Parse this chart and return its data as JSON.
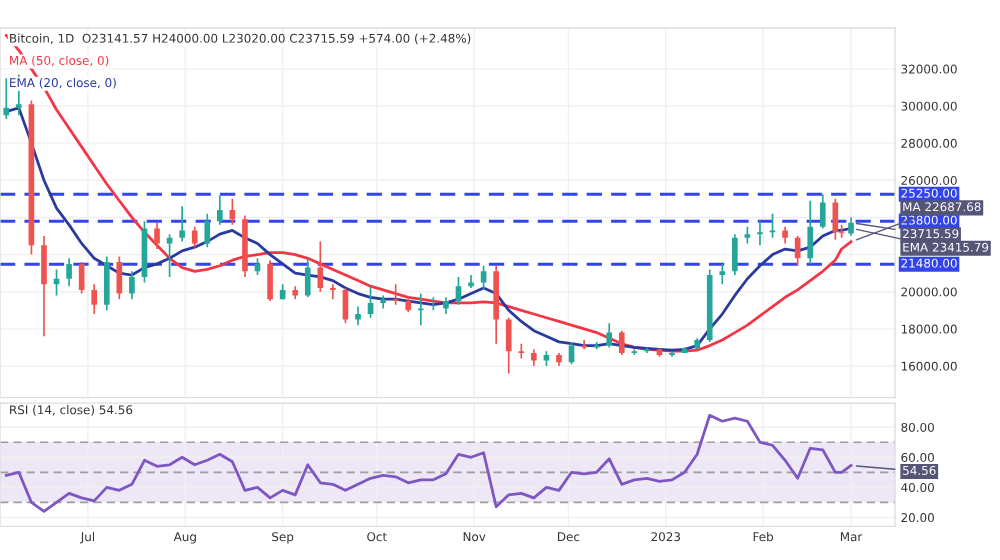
{
  "chart_data": [
    {
      "type": "candlestick",
      "title": "Bitcoin, 1D  O23141.57 H24000.00 L23020.00 C23715.59 +574.00 (+2.48%)",
      "x": [
        "2022-06-05",
        "2022-06-09",
        "2022-06-13",
        "2022-06-17",
        "2022-06-21",
        "2022-06-25",
        "2022-06-29",
        "2022-07-03",
        "2022-07-07",
        "2022-07-11",
        "2022-07-15",
        "2022-07-19",
        "2022-07-23",
        "2022-07-27",
        "2022-07-31",
        "2022-08-04",
        "2022-08-08",
        "2022-08-12",
        "2022-08-16",
        "2022-08-20",
        "2022-08-24",
        "2022-08-28",
        "2022-09-01",
        "2022-09-05",
        "2022-09-09",
        "2022-09-13",
        "2022-09-17",
        "2022-09-21",
        "2022-09-25",
        "2022-09-29",
        "2022-10-03",
        "2022-10-07",
        "2022-10-11",
        "2022-10-15",
        "2022-10-19",
        "2022-10-23",
        "2022-10-27",
        "2022-10-31",
        "2022-11-04",
        "2022-11-08",
        "2022-11-12",
        "2022-11-16",
        "2022-11-20",
        "2022-11-24",
        "2022-11-28",
        "2022-12-02",
        "2022-12-06",
        "2022-12-10",
        "2022-12-14",
        "2022-12-18",
        "2022-12-22",
        "2022-12-26",
        "2022-12-30",
        "2023-01-03",
        "2023-01-07",
        "2023-01-11",
        "2023-01-15",
        "2023-01-19",
        "2023-01-23",
        "2023-01-27",
        "2023-01-31",
        "2023-02-04",
        "2023-02-08",
        "2023-02-12",
        "2023-02-16",
        "2023-02-20",
        "2023-02-24",
        "2023-02-26",
        "2023-03-01"
      ],
      "ohlc": [
        [
          29500,
          31500,
          29300,
          29900
        ],
        [
          29900,
          31700,
          29500,
          30100
        ],
        [
          30100,
          30300,
          22000,
          22500
        ],
        [
          22500,
          23000,
          17600,
          20400
        ],
        [
          20400,
          21200,
          19800,
          20700
        ],
        [
          20700,
          21800,
          20300,
          21500
        ],
        [
          21500,
          21600,
          19900,
          20100
        ],
        [
          20100,
          20400,
          18800,
          19300
        ],
        [
          19300,
          21900,
          19000,
          21600
        ],
        [
          21600,
          21900,
          19600,
          19900
        ],
        [
          19900,
          21100,
          19600,
          20800
        ],
        [
          20800,
          23800,
          20500,
          23400
        ],
        [
          23400,
          23700,
          22300,
          22600
        ],
        [
          22600,
          23100,
          20800,
          22900
        ],
        [
          22900,
          24600,
          22700,
          23300
        ],
        [
          23300,
          23500,
          22400,
          22600
        ],
        [
          22600,
          24200,
          22400,
          23800
        ],
        [
          23800,
          25200,
          23600,
          24400
        ],
        [
          24400,
          25000,
          23600,
          23900
        ],
        [
          23900,
          24100,
          20800,
          21100
        ],
        [
          21100,
          21800,
          20900,
          21500
        ],
        [
          21500,
          21700,
          19500,
          19600
        ],
        [
          19600,
          20400,
          19600,
          20100
        ],
        [
          20100,
          20300,
          19600,
          19800
        ],
        [
          19800,
          21800,
          19700,
          21300
        ],
        [
          21300,
          22700,
          20000,
          20200
        ],
        [
          20200,
          20400,
          19600,
          20100
        ],
        [
          20100,
          20200,
          18300,
          18500
        ],
        [
          18500,
          19200,
          18200,
          18800
        ],
        [
          18800,
          20300,
          18600,
          19400
        ],
        [
          19400,
          19800,
          19100,
          19600
        ],
        [
          19600,
          20400,
          19300,
          19500
        ],
        [
          19500,
          19600,
          18900,
          19000
        ],
        [
          19000,
          19900,
          18200,
          19100
        ],
        [
          19100,
          19700,
          19000,
          19100
        ],
        [
          19100,
          19700,
          18800,
          19500
        ],
        [
          19500,
          20800,
          19300,
          20300
        ],
        [
          20300,
          20900,
          20200,
          20500
        ],
        [
          20500,
          21400,
          20100,
          21100
        ],
        [
          21100,
          21400,
          17200,
          18500
        ],
        [
          18500,
          18600,
          15600,
          16800
        ],
        [
          16800,
          17200,
          16400,
          16700
        ],
        [
          16700,
          16900,
          16000,
          16300
        ],
        [
          16300,
          16800,
          16000,
          16600
        ],
        [
          16600,
          16700,
          16000,
          16200
        ],
        [
          16200,
          17300,
          16100,
          17100
        ],
        [
          17100,
          17400,
          16900,
          17000
        ],
        [
          17000,
          17300,
          16900,
          17100
        ],
        [
          17100,
          18300,
          17000,
          17800
        ],
        [
          17800,
          17900,
          16600,
          16700
        ],
        [
          16700,
          16900,
          16600,
          16800
        ],
        [
          16800,
          17000,
          16700,
          16900
        ],
        [
          16900,
          16950,
          16500,
          16600
        ],
        [
          16600,
          16800,
          16500,
          16700
        ],
        [
          16700,
          17000,
          16700,
          16950
        ],
        [
          16950,
          17500,
          16900,
          17400
        ],
        [
          17400,
          21200,
          17300,
          20900
        ],
        [
          20900,
          21500,
          20400,
          21100
        ],
        [
          21100,
          23100,
          20900,
          22900
        ],
        [
          22900,
          23500,
          22600,
          23100
        ],
        [
          23100,
          23800,
          22500,
          23200
        ],
        [
          23200,
          24200,
          22900,
          23300
        ],
        [
          23300,
          23500,
          22600,
          22900
        ],
        [
          22900,
          23000,
          21400,
          21800
        ],
        [
          21800,
          24900,
          21500,
          23500
        ],
        [
          23500,
          25250,
          23400,
          24800
        ],
        [
          24800,
          25000,
          22800,
          23200
        ],
        [
          23200,
          23600,
          22900,
          23150
        ],
        [
          23141.57,
          24000,
          23020,
          23715.59
        ]
      ],
      "colors": [
        "#26a69a",
        "#26a69a",
        "#ef5350",
        "#ef5350",
        "#26a69a",
        "#26a69a",
        "#ef5350",
        "#ef5350",
        "#26a69a",
        "#ef5350",
        "#26a69a",
        "#26a69a",
        "#ef5350",
        "#26a69a",
        "#26a69a",
        "#ef5350",
        "#26a69a",
        "#26a69a",
        "#ef5350",
        "#ef5350",
        "#26a69a",
        "#ef5350",
        "#26a69a",
        "#ef5350",
        "#26a69a",
        "#ef5350",
        "#ef5350",
        "#ef5350",
        "#26a69a",
        "#26a69a",
        "#26a69a",
        "#ef5350",
        "#ef5350",
        "#26a69a",
        "#26a69a",
        "#26a69a",
        "#26a69a",
        "#26a69a",
        "#26a69a",
        "#ef5350",
        "#ef5350",
        "#ef5350",
        "#ef5350",
        "#26a69a",
        "#ef5350",
        "#26a69a",
        "#ef5350",
        "#26a69a",
        "#26a69a",
        "#ef5350",
        "#26a69a",
        "#26a69a",
        "#ef5350",
        "#26a69a",
        "#26a69a",
        "#26a69a",
        "#26a69a",
        "#26a69a",
        "#26a69a",
        "#26a69a",
        "#26a69a",
        "#26a69a",
        "#ef5350",
        "#ef5350",
        "#26a69a",
        "#26a69a",
        "#ef5350",
        "#ef5350",
        "#26a69a"
      ],
      "series": [
        {
          "type": "line",
          "name": "MA (50, close, 0)",
          "color": "#f23645",
          "values": [
            33800,
            33000,
            32000,
            31000,
            29800,
            28800,
            27800,
            26800,
            25800,
            24900,
            24000,
            23200,
            22500,
            21800,
            21300,
            21100,
            21200,
            21400,
            21700,
            21900,
            22000,
            22100,
            22100,
            22000,
            21800,
            21500,
            21200,
            20900,
            20600,
            20300,
            20100,
            19900,
            19700,
            19600,
            19500,
            19400,
            19400,
            19400,
            19450,
            19400,
            19200,
            19000,
            18800,
            18600,
            18400,
            18200,
            18000,
            17800,
            17500,
            17200,
            17000,
            16900,
            16850,
            16800,
            16800,
            16850,
            17100,
            17400,
            17800,
            18200,
            18700,
            19200,
            19700,
            20100,
            20600,
            21100,
            21700,
            22300,
            22687.68
          ]
        },
        {
          "type": "line",
          "name": "EMA (20, close, 0)",
          "color": "#2a3a9f",
          "values": [
            29700,
            29900,
            28000,
            26000,
            24500,
            23600,
            22600,
            21800,
            21400,
            21000,
            20900,
            21300,
            21500,
            21800,
            22200,
            22400,
            22700,
            23100,
            23300,
            22900,
            22600,
            22000,
            21500,
            21000,
            20900,
            20800,
            20600,
            20200,
            19900,
            19700,
            19600,
            19600,
            19500,
            19400,
            19300,
            19400,
            19600,
            19900,
            20200,
            19900,
            19000,
            18400,
            17900,
            17600,
            17300,
            17200,
            17100,
            17100,
            17200,
            17100,
            17000,
            16950,
            16900,
            16850,
            16900,
            17100,
            18000,
            18800,
            19800,
            20700,
            21400,
            22000,
            22300,
            22200,
            22400,
            23000,
            23300,
            23300,
            23415.79
          ]
        }
      ],
      "ref_lines": [
        {
          "axis": "y",
          "value": 25250,
          "label": "25250.00",
          "color": "#3344ee",
          "line_style": "dashed"
        },
        {
          "axis": "y",
          "value": 23800,
          "label": "23800.00",
          "color": "#3344ee",
          "line_style": "dashed"
        },
        {
          "axis": "y",
          "value": 21480,
          "label": "21480.00",
          "color": "#3344ee",
          "line_style": "dashed"
        }
      ],
      "annotations": [
        {
          "text": "23715.59",
          "x": "2023-03-01",
          "y": 23715.59
        },
        {
          "text": "EMA 23415.79",
          "x": "2023-03-01",
          "y": 23415.79
        },
        {
          "text": "MA 22687.68",
          "x": "2023-03-01",
          "y": 22687.68
        }
      ],
      "xlim": [
        "2022-06-03",
        "2023-03-15"
      ],
      "xticks": [
        "2022-07-01",
        "2022-08-01",
        "2022-09-01",
        "2022-10-01",
        "2022-11-01",
        "2022-12-01",
        "2023-01-01",
        "2023-02-01",
        "2023-03-01"
      ],
      "ylim": [
        14300,
        34200
      ],
      "yticks": [
        {
          "value": 16000,
          "label": "16000.00"
        },
        {
          "value": 18000,
          "label": "18000.00"
        },
        {
          "value": 20000,
          "label": "20000.00"
        },
        {
          "value": 22000,
          "label": null
        },
        {
          "value": 24000,
          "label": null
        },
        {
          "value": 26000,
          "label": "26000.00"
        },
        {
          "value": 28000,
          "label": "28000.00"
        },
        {
          "value": 30000,
          "label": "30000.00"
        },
        {
          "value": 32000,
          "label": "32000.00"
        }
      ],
      "grid": true,
      "tick_labels": "y"
    },
    {
      "type": "line",
      "title": "RSI (14, close) 54.56",
      "x": [
        "2022-06-05",
        "2022-06-09",
        "2022-06-13",
        "2022-06-17",
        "2022-06-21",
        "2022-06-25",
        "2022-06-29",
        "2022-07-03",
        "2022-07-07",
        "2022-07-11",
        "2022-07-15",
        "2022-07-19",
        "2022-07-23",
        "2022-07-27",
        "2022-07-31",
        "2022-08-04",
        "2022-08-08",
        "2022-08-12",
        "2022-08-16",
        "2022-08-20",
        "2022-08-24",
        "2022-08-28",
        "2022-09-01",
        "2022-09-05",
        "2022-09-09",
        "2022-09-13",
        "2022-09-17",
        "2022-09-21",
        "2022-09-25",
        "2022-09-29",
        "2022-10-03",
        "2022-10-07",
        "2022-10-11",
        "2022-10-15",
        "2022-10-19",
        "2022-10-23",
        "2022-10-27",
        "2022-10-31",
        "2022-11-04",
        "2022-11-08",
        "2022-11-12",
        "2022-11-16",
        "2022-11-20",
        "2022-11-24",
        "2022-11-28",
        "2022-12-02",
        "2022-12-06",
        "2022-12-10",
        "2022-12-14",
        "2022-12-18",
        "2022-12-22",
        "2022-12-26",
        "2022-12-30",
        "2023-01-03",
        "2023-01-07",
        "2023-01-11",
        "2023-01-15",
        "2023-01-19",
        "2023-01-23",
        "2023-01-27",
        "2023-01-31",
        "2023-02-04",
        "2023-02-08",
        "2023-02-12",
        "2023-02-16",
        "2023-02-20",
        "2023-02-24",
        "2023-02-26",
        "2023-03-01"
      ],
      "series": [
        {
          "color": "#7e57c2",
          "values": [
            48,
            50,
            30,
            24,
            30,
            36,
            33,
            31,
            40,
            38,
            42,
            58,
            54,
            55,
            60,
            55,
            58,
            62,
            57,
            38,
            40,
            33,
            38,
            35,
            55,
            43,
            42,
            38,
            42,
            46,
            48,
            47,
            43,
            45,
            45,
            49,
            62,
            60,
            63,
            27,
            35,
            36,
            33,
            40,
            38,
            50,
            49,
            50,
            59,
            42,
            45,
            46,
            44,
            45,
            50,
            62,
            88,
            84,
            86,
            84,
            70,
            68,
            58,
            46,
            66,
            65,
            50,
            50,
            54.56
          ]
        }
      ],
      "bands": [
        {
          "axis": "y",
          "from": 30,
          "to": 70,
          "color": "#ede7f6"
        }
      ],
      "ref_lines": [
        {
          "axis": "y",
          "value": 70,
          "color": "#9e9e9e",
          "line_style": "dashed"
        },
        {
          "axis": "y",
          "value": 50,
          "color": "#9e9e9e",
          "line_style": "dashed"
        },
        {
          "axis": "y",
          "value": 30,
          "color": "#9e9e9e",
          "line_style": "dashed"
        }
      ],
      "annotations": [
        {
          "text": "54.56",
          "x": "2023-03-01",
          "y": 54.56
        }
      ],
      "xlim": [
        "2022-06-03",
        "2023-03-15"
      ],
      "xticks": [
        {
          "value": "2022-07-01",
          "label": "Jul"
        },
        {
          "value": "2022-08-01",
          "label": "Aug"
        },
        {
          "value": "2022-09-01",
          "label": "Sep"
        },
        {
          "value": "2022-10-01",
          "label": "Oct"
        },
        {
          "value": "2022-11-01",
          "label": "Nov"
        },
        {
          "value": "2022-12-01",
          "label": "Dec"
        },
        {
          "value": "2023-01-01",
          "label": "2023"
        },
        {
          "value": "2023-02-01",
          "label": "Feb"
        },
        {
          "value": "2023-03-01",
          "label": "Mar"
        }
      ],
      "ylim": [
        14,
        96
      ],
      "yticks": [
        {
          "value": 20,
          "label": "20.00"
        },
        {
          "value": 40,
          "label": "40.00"
        },
        {
          "value": 60,
          "label": "60.00"
        },
        {
          "value": 80,
          "label": "80.00"
        }
      ],
      "grid": true
    }
  ]
}
